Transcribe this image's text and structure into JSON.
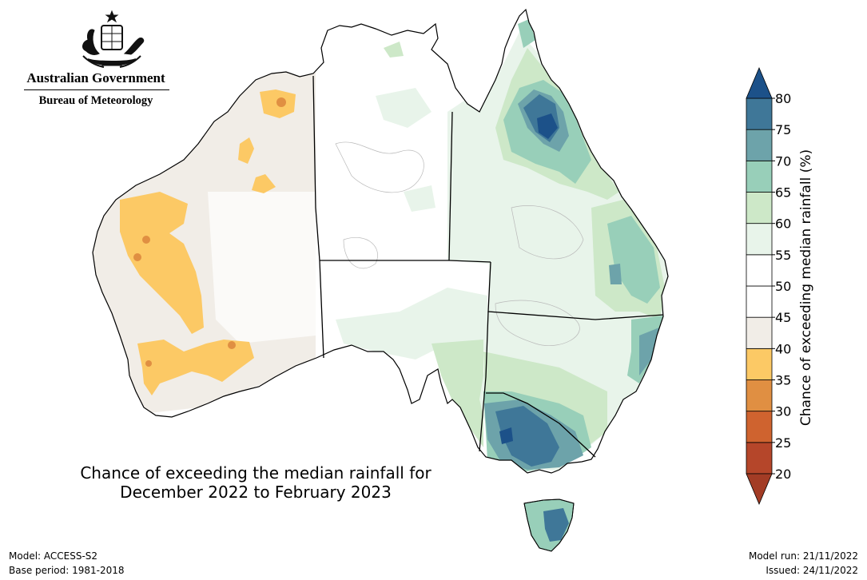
{
  "header": {
    "government": "Australian Government",
    "bureau": "Bureau of Meteorology",
    "crest_icon": "commonwealth-coat-of-arms-icon"
  },
  "title": {
    "line1": "Chance of exceeding the median rainfall for",
    "line2": "December 2022 to February 2023"
  },
  "footer": {
    "model": "Model: ACCESS-S2",
    "base_period": "Base period: 1981-2018",
    "model_run": "Model run: 21/11/2022",
    "issued": "Issued: 24/11/2022"
  },
  "colorbar": {
    "label": "Chance of exceeding median rainfall (%)",
    "ticks": [
      "20",
      "25",
      "30",
      "35",
      "40",
      "45",
      "50",
      "55",
      "60",
      "65",
      "70",
      "75",
      "80"
    ],
    "bands": [
      {
        "range": [
          20,
          25
        ],
        "color": "#b5462a"
      },
      {
        "range": [
          25,
          30
        ],
        "color": "#cf632f"
      },
      {
        "range": [
          30,
          35
        ],
        "color": "#e08f42"
      },
      {
        "range": [
          35,
          40
        ],
        "color": "#fcc965"
      },
      {
        "range": [
          40,
          45
        ],
        "color": "#f1ede7"
      },
      {
        "range": [
          45,
          50
        ],
        "color": "#ffffff"
      },
      {
        "range": [
          50,
          55
        ],
        "color": "#ffffff"
      },
      {
        "range": [
          55,
          60
        ],
        "color": "#e8f4ea"
      },
      {
        "range": [
          60,
          65
        ],
        "color": "#cde8c8"
      },
      {
        "range": [
          65,
          70
        ],
        "color": "#98cfb9"
      },
      {
        "range": [
          70,
          75
        ],
        "color": "#6da3aa"
      },
      {
        "range": [
          75,
          80
        ],
        "color": "#3f7798"
      }
    ],
    "under_color": "#a33c25",
    "over_color": "#1c5189"
  },
  "map": {
    "regions": [
      {
        "name": "Western Australia",
        "category": "40-45"
      },
      {
        "name": "Northern Territory",
        "category": "45-55"
      },
      {
        "name": "South Australia",
        "category": "45-55"
      },
      {
        "name": "Queensland",
        "category": "55-80"
      },
      {
        "name": "New South Wales",
        "category": "55-75"
      },
      {
        "name": "Victoria",
        "category": "70-80"
      },
      {
        "name": "Tasmania",
        "category": "65-80"
      }
    ]
  }
}
